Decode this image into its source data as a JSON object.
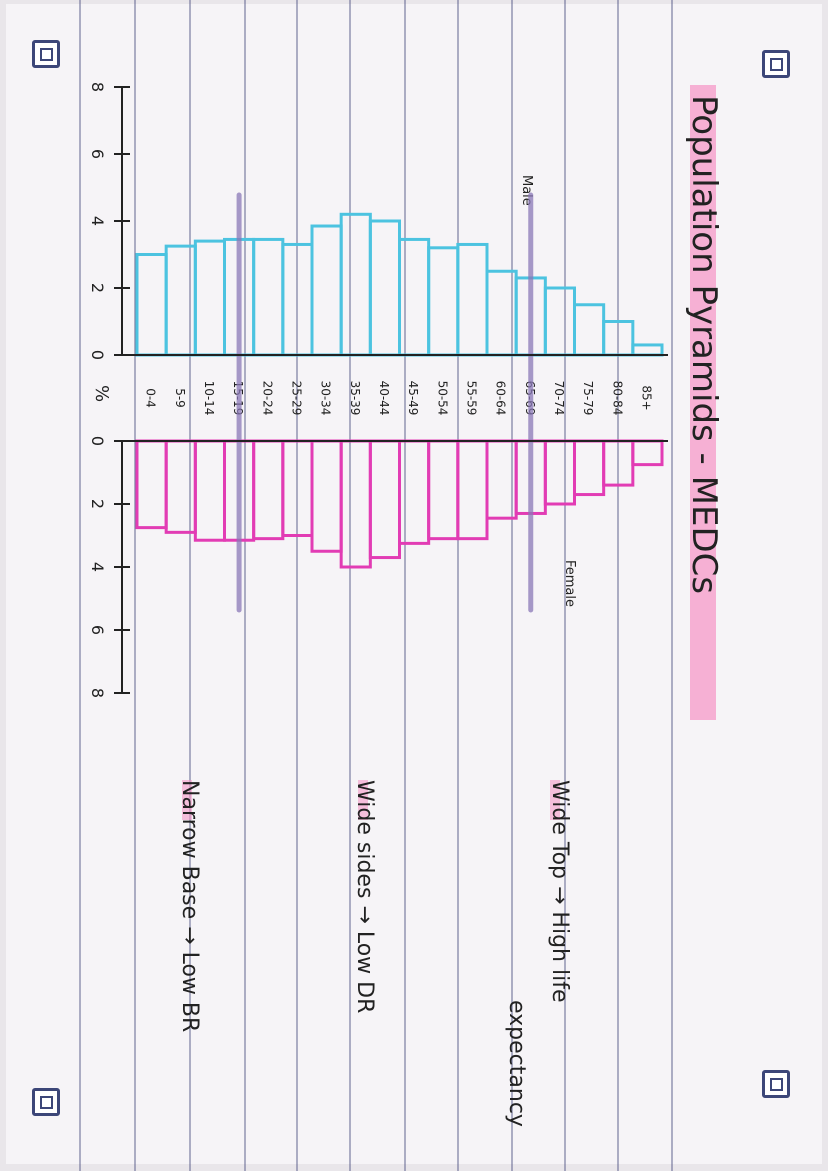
{
  "title": "Population Pyramids - MEDCs",
  "labels": {
    "male": "Male",
    "female": "Female",
    "percent": "%"
  },
  "notes": [
    {
      "text": "Wide Top → High life",
      "cont": "expectancy"
    },
    {
      "text": "Wide sides → Low DR"
    },
    {
      "text": "Narrow Base → Low BR"
    }
  ],
  "colors": {
    "male": "#4cc3e0",
    "female": "#e23cb4",
    "highlight": "#f59ac8",
    "marker": "#8a78b8",
    "rule": "#5a5f8c"
  },
  "chart_data": {
    "type": "bar",
    "orientation": "population-pyramid",
    "categories": [
      "0-4",
      "5-9",
      "10-14",
      "15-19",
      "20-24",
      "25-29",
      "30-34",
      "35-39",
      "40-44",
      "45-49",
      "50-54",
      "55-59",
      "60-64",
      "65-69",
      "70-74",
      "75-79",
      "80-84",
      "85+"
    ],
    "series": [
      {
        "name": "Male",
        "values": [
          3.0,
          3.25,
          3.4,
          3.45,
          3.45,
          3.3,
          3.85,
          4.2,
          4.0,
          3.45,
          3.2,
          3.3,
          2.5,
          2.3,
          2.0,
          1.5,
          1.0,
          0.3
        ]
      },
      {
        "name": "Female",
        "values": [
          2.75,
          2.9,
          3.15,
          3.15,
          3.1,
          3.0,
          3.5,
          4.0,
          3.7,
          3.25,
          3.1,
          3.1,
          2.45,
          2.3,
          2.0,
          1.7,
          1.4,
          0.75
        ]
      }
    ],
    "xlabel": "%",
    "xticks": [
      "8",
      "6",
      "4",
      "2",
      "0",
      "0",
      "2",
      "4",
      "6",
      "8"
    ],
    "xlim": [
      0,
      8
    ],
    "highlighted_categories": [
      "15-19",
      "65-69"
    ],
    "grid": false
  }
}
